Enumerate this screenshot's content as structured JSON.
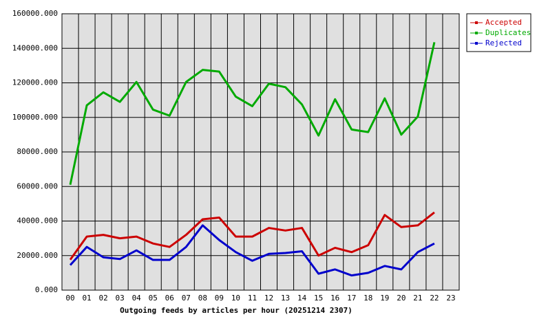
{
  "chart_data": {
    "type": "line",
    "xlabel": "Outgoing feeds by articles per hour (20251214 2307)",
    "categories": [
      "00",
      "01",
      "02",
      "03",
      "04",
      "05",
      "06",
      "07",
      "08",
      "09",
      "10",
      "11",
      "12",
      "13",
      "14",
      "15",
      "16",
      "17",
      "18",
      "19",
      "20",
      "21",
      "22",
      "23"
    ],
    "series": [
      {
        "name": "Accepted",
        "color": "#cc0000",
        "values": [
          17600,
          31000,
          32000,
          30000,
          31000,
          27000,
          25000,
          32000,
          41000,
          42000,
          31000,
          31000,
          36000,
          34500,
          36000,
          20000,
          24500,
          22000,
          26000,
          43500,
          36500,
          37500,
          45000,
          null
        ]
      },
      {
        "name": "Duplicates",
        "color": "#00aa00",
        "values": [
          61000,
          107000,
          114500,
          109000,
          120500,
          104500,
          101000,
          120500,
          127500,
          126500,
          112000,
          106500,
          119500,
          117500,
          107500,
          89500,
          110500,
          93000,
          91500,
          111000,
          90000,
          100500,
          143500,
          null
        ]
      },
      {
        "name": "Rejected",
        "color": "#0000cc",
        "values": [
          14500,
          25000,
          19000,
          18000,
          23000,
          17500,
          17500,
          25000,
          37500,
          29000,
          22000,
          17000,
          21000,
          21500,
          22500,
          9500,
          12000,
          8500,
          10000,
          14000,
          12000,
          22000,
          27000,
          null
        ]
      }
    ],
    "ylim": [
      0,
      160000
    ],
    "yticks": [
      {
        "value": 0,
        "label": "0.000"
      },
      {
        "value": 20000,
        "label": "20000.000"
      },
      {
        "value": 40000,
        "label": "40000.000"
      },
      {
        "value": 60000,
        "label": "60000.000"
      },
      {
        "value": 80000,
        "label": "80000.000"
      },
      {
        "value": 100000,
        "label": "100000.000"
      },
      {
        "value": 120000,
        "label": "120000.000"
      },
      {
        "value": 140000,
        "label": "140000.000"
      },
      {
        "value": 160000,
        "label": "160000.000"
      }
    ],
    "grid": true,
    "legend": "right"
  }
}
